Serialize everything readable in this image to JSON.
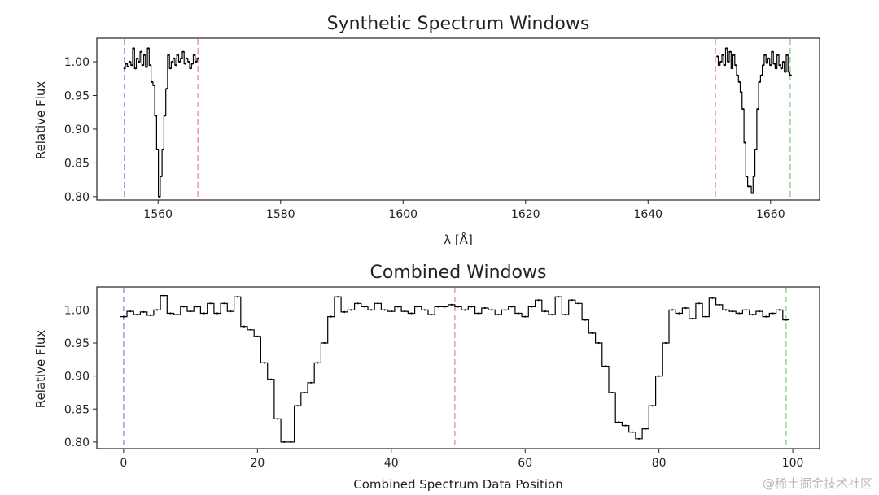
{
  "watermark": "@稀土掘金技术社区",
  "chart_data": [
    {
      "type": "line",
      "title": "Synthetic Spectrum Windows",
      "xlabel": "λ [Å]",
      "ylabel": "Relative Flux",
      "xlim": [
        1550,
        1668
      ],
      "ylim": [
        0.795,
        1.035
      ],
      "xticks": [
        1560,
        1580,
        1600,
        1620,
        1640,
        1660
      ],
      "xtick_labels": [
        "1560",
        "1580",
        "1600",
        "1620",
        "1640",
        "1660"
      ],
      "yticks": [
        0.8,
        0.85,
        0.9,
        0.95,
        1.0
      ],
      "ytick_labels": [
        "0.80",
        "0.85",
        "0.90",
        "0.95",
        "1.00"
      ],
      "grid": false,
      "line_style": "steps",
      "series": [
        {
          "color": "#000000",
          "segments": [
            {
              "x": [
                1554.5,
                1554.8,
                1555.1,
                1555.4,
                1555.7,
                1556.0,
                1556.3,
                1556.6,
                1556.9,
                1557.2,
                1557.5,
                1557.8,
                1558.1,
                1558.4,
                1558.7,
                1559.0,
                1559.3,
                1559.6,
                1559.9,
                1560.2,
                1560.5,
                1560.8,
                1561.1,
                1561.4,
                1561.7,
                1562.0,
                1562.3,
                1562.6,
                1562.9,
                1563.2,
                1563.5,
                1563.8,
                1564.1,
                1564.4,
                1564.7,
                1565.0,
                1565.3,
                1565.6,
                1565.9,
                1566.2,
                1566.5
              ],
              "y": [
                0.99,
                0.997,
                0.993,
                1.0,
                0.995,
                1.02,
                0.99,
                1.005,
                1.0,
                1.015,
                0.995,
                1.01,
                0.992,
                1.02,
                0.995,
                0.97,
                0.965,
                0.92,
                0.87,
                0.8,
                0.83,
                0.87,
                0.92,
                0.96,
                1.01,
                0.99,
                1.0,
                1.005,
                0.995,
                1.01,
                1.0,
                1.005,
                1.015,
                0.997,
                1.005,
                1.0,
                0.99,
                0.997,
                1.01,
                1.0,
                1.005
              ]
            },
            {
              "x": [
                1651.3,
                1651.6,
                1651.9,
                1652.2,
                1652.5,
                1652.8,
                1653.1,
                1653.4,
                1653.7,
                1654.0,
                1654.3,
                1654.6,
                1654.9,
                1655.2,
                1655.5,
                1655.8,
                1656.1,
                1656.4,
                1656.7,
                1657.0,
                1657.3,
                1657.6,
                1657.9,
                1658.2,
                1658.5,
                1658.8,
                1659.1,
                1659.4,
                1659.7,
                1660.0,
                1660.3,
                1660.6,
                1660.9,
                1661.2,
                1661.5,
                1661.8,
                1662.1,
                1662.4,
                1662.7,
                1663.0,
                1663.3
              ],
              "y": [
                1.008,
                0.995,
                1.0,
                1.01,
                0.995,
                1.02,
                1.0,
                1.015,
                0.99,
                1.01,
                0.995,
                0.98,
                0.97,
                0.955,
                0.93,
                0.88,
                0.83,
                0.815,
                0.815,
                0.805,
                0.83,
                0.87,
                0.93,
                0.97,
                0.98,
                0.995,
                1.01,
                0.998,
                1.005,
                0.995,
                1.015,
                0.997,
                0.99,
                1.01,
                0.995,
                0.99,
                1.0,
                0.985,
                1.01,
                0.985,
                0.98
              ]
            }
          ]
        }
      ],
      "vlines": [
        {
          "x": 1554.5,
          "color": "#8888ee"
        },
        {
          "x": 1566.5,
          "color": "#ee8888"
        },
        {
          "x": 1651.0,
          "color": "#ee8888"
        },
        {
          "x": 1663.2,
          "color": "#88cc88"
        }
      ]
    },
    {
      "type": "line",
      "title": "Combined Windows",
      "xlabel": "Combined Spectrum Data Position",
      "ylabel": "Relative Flux",
      "xlim": [
        -4,
        104
      ],
      "ylim": [
        0.79,
        1.035
      ],
      "xticks": [
        0,
        20,
        40,
        60,
        80,
        100
      ],
      "xtick_labels": [
        "0",
        "20",
        "40",
        "60",
        "80",
        "100"
      ],
      "yticks": [
        0.8,
        0.85,
        0.9,
        0.95,
        1.0
      ],
      "ytick_labels": [
        "0.80",
        "0.85",
        "0.90",
        "0.95",
        "1.00"
      ],
      "grid": false,
      "line_style": "steps",
      "series": [
        {
          "color": "#000000",
          "segments": [
            {
              "x": [
                0,
                1,
                2,
                3,
                4,
                5,
                6,
                7,
                8,
                9,
                10,
                11,
                12,
                13,
                14,
                15,
                16,
                17,
                18,
                19,
                20,
                21,
                22,
                23,
                24,
                25,
                26,
                27,
                28,
                29,
                30,
                31,
                32,
                33,
                34,
                35,
                36,
                37,
                38,
                39,
                40,
                41,
                42,
                43,
                44,
                45,
                46,
                47,
                48,
                49,
                50,
                51,
                52,
                53,
                54,
                55,
                56,
                57,
                58,
                59,
                60,
                61,
                62,
                63,
                64,
                65,
                66,
                67,
                68,
                69,
                70,
                71,
                72,
                73,
                74,
                75,
                76,
                77,
                78,
                79,
                80,
                81,
                82,
                83,
                84,
                85,
                86,
                87,
                88,
                89,
                90,
                91,
                92,
                93,
                94,
                95,
                96,
                97,
                98,
                99
              ],
              "y": [
                0.99,
                0.998,
                0.993,
                0.997,
                0.992,
                1.0,
                1.022,
                0.995,
                0.993,
                1.005,
                0.998,
                1.005,
                0.995,
                1.01,
                0.995,
                1.01,
                0.998,
                1.02,
                0.975,
                0.97,
                0.96,
                0.92,
                0.895,
                0.835,
                0.8,
                0.8,
                0.855,
                0.875,
                0.89,
                0.92,
                0.95,
                0.99,
                1.02,
                0.997,
                1.0,
                1.01,
                1.005,
                1.0,
                1.01,
                1.0,
                0.998,
                1.005,
                0.998,
                0.995,
                1.005,
                1.0,
                0.993,
                1.005,
                1.005,
                1.008,
                1.005,
                1.0,
                1.005,
                0.995,
                1.003,
                1.0,
                0.993,
                1.0,
                1.005,
                0.995,
                0.99,
                1.005,
                1.015,
                0.998,
                0.993,
                1.02,
                0.993,
                1.015,
                1.01,
                0.985,
                0.965,
                0.95,
                0.915,
                0.875,
                0.83,
                0.825,
                0.815,
                0.805,
                0.82,
                0.855,
                0.9,
                0.95,
                1.0,
                0.995,
                1.003,
                0.987,
                1.01,
                0.99,
                1.018,
                1.008,
                1.0,
                0.998,
                0.995,
                1.0,
                0.993,
                0.998,
                0.99,
                0.995,
                1.0,
                0.985
              ]
            }
          ]
        }
      ],
      "vlines": [
        {
          "x": 0,
          "color": "#8888ee"
        },
        {
          "x": 49.5,
          "color": "#ee8888"
        },
        {
          "x": 99,
          "color": "#88cc88"
        }
      ]
    }
  ]
}
